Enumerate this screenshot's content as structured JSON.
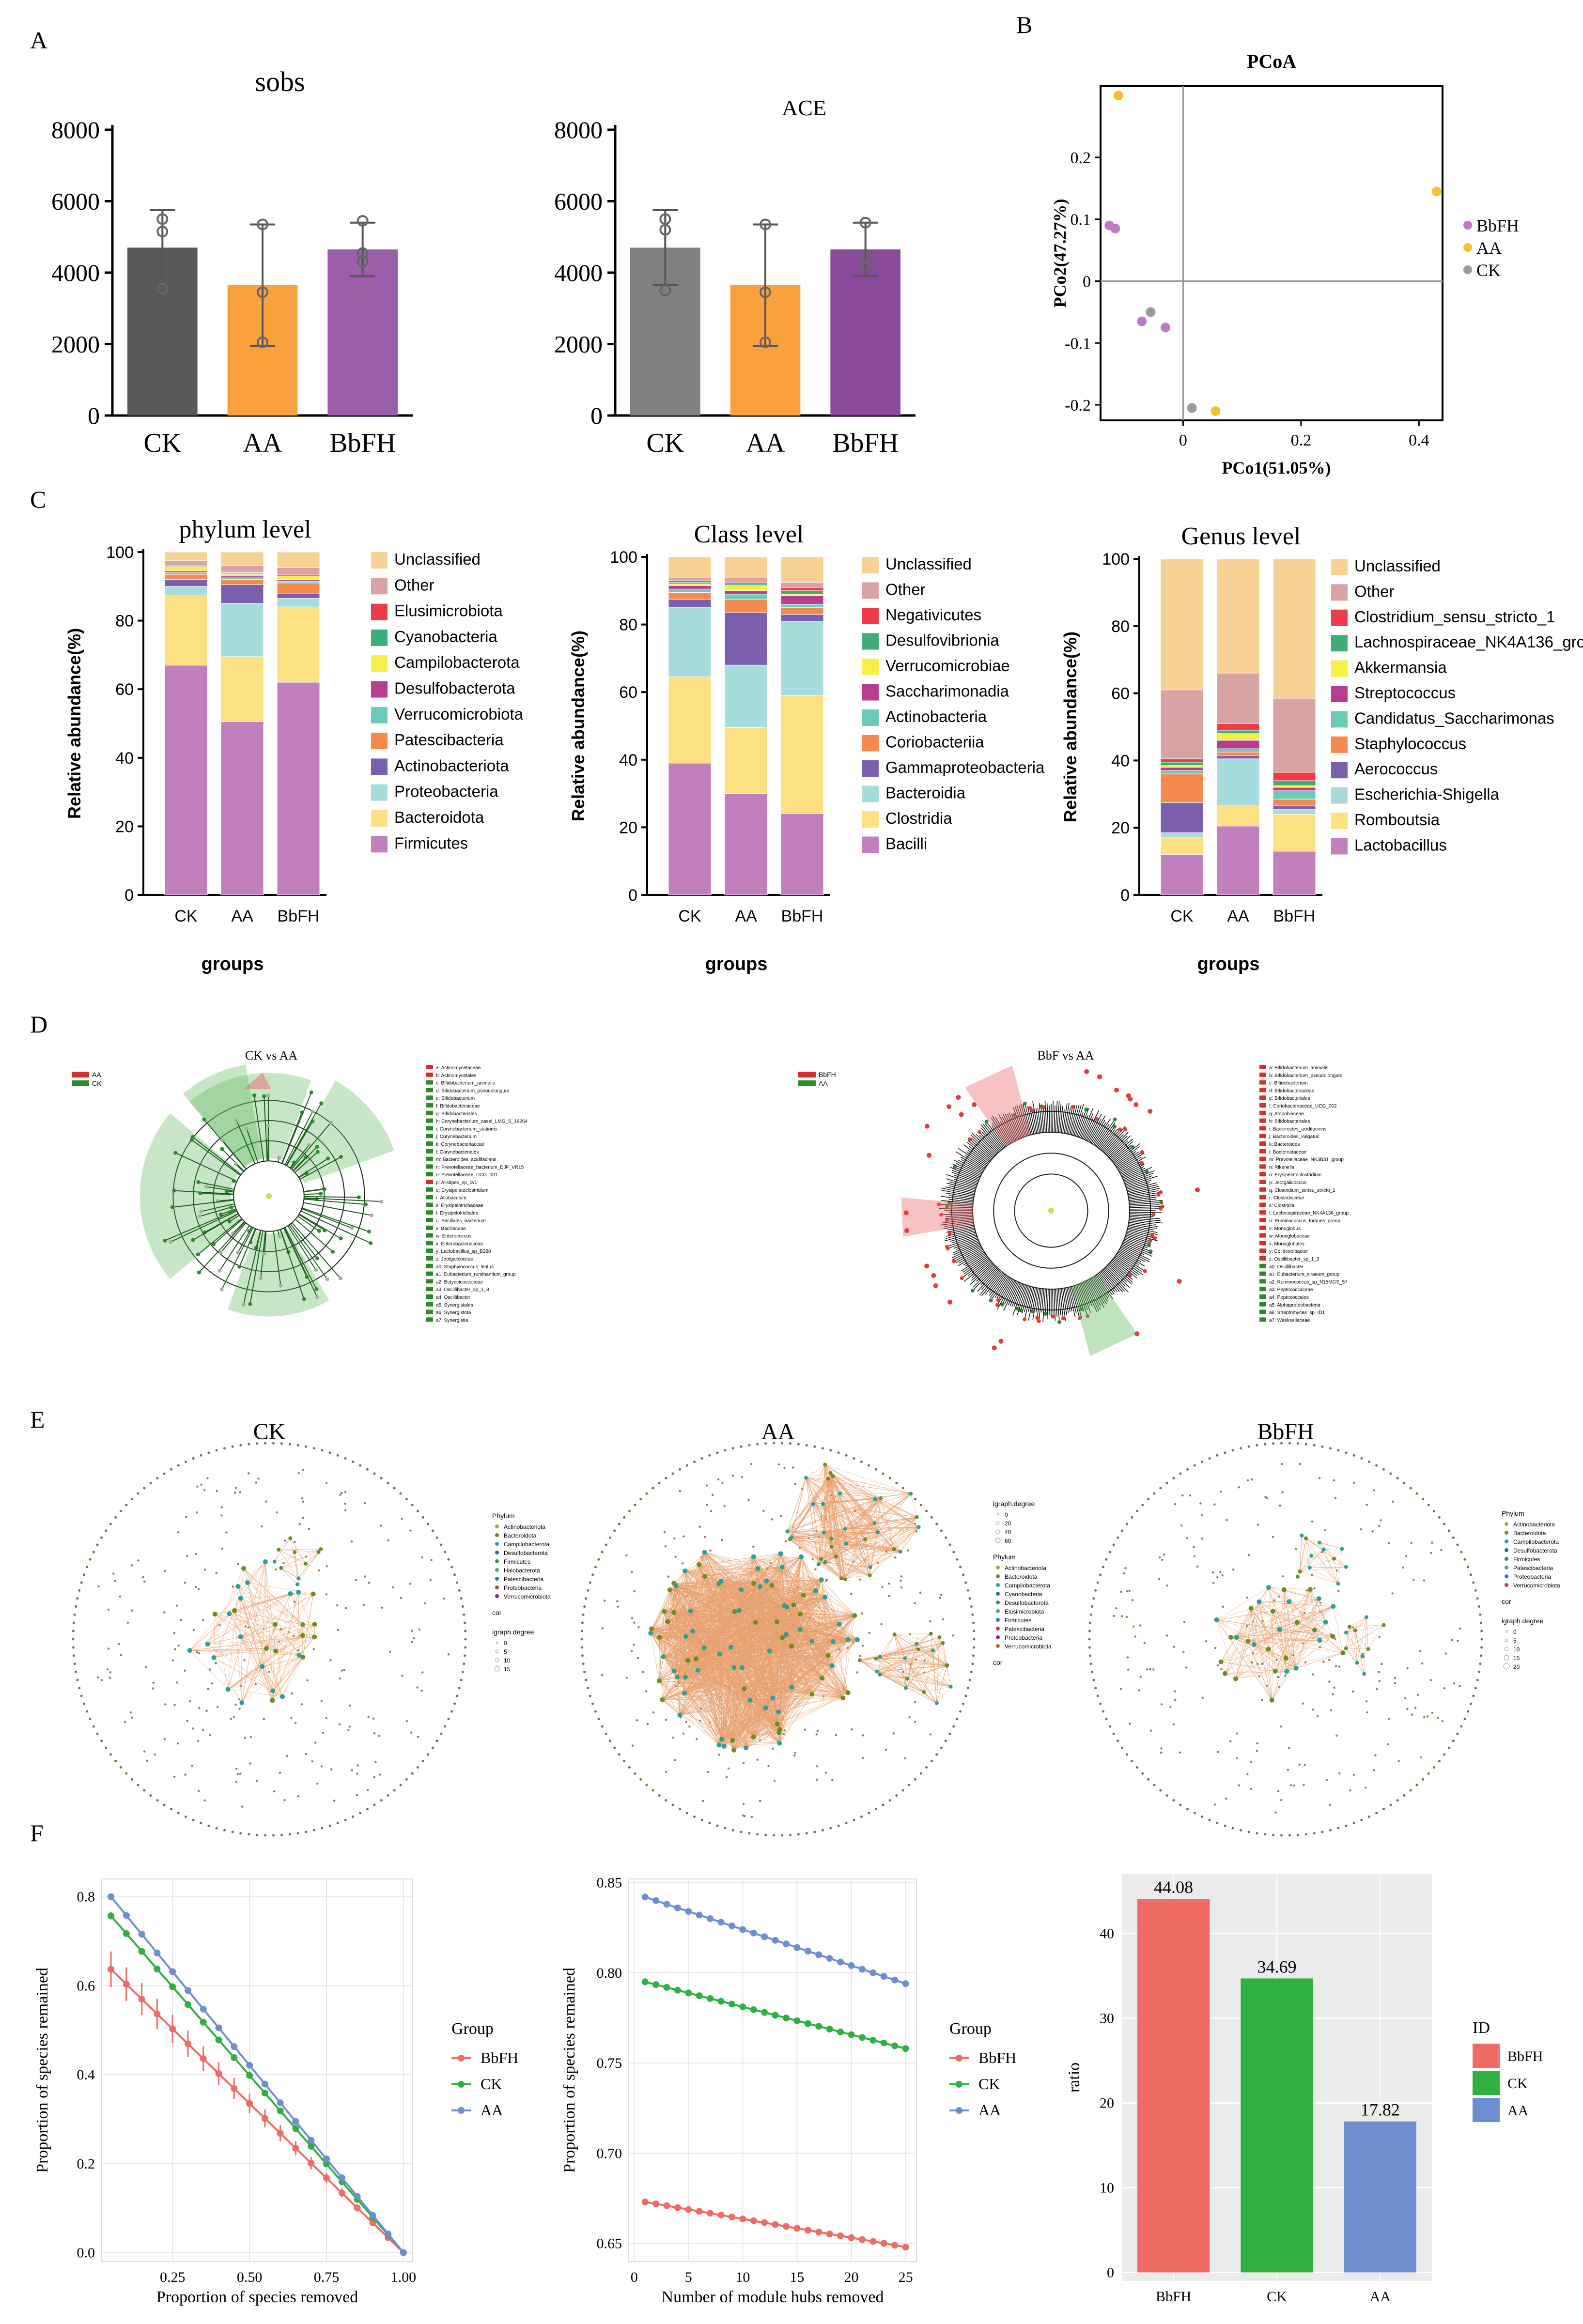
{
  "panel_labels": {
    "a": "A",
    "b": "B",
    "c": "C",
    "d": "D",
    "e": "E",
    "f": "F"
  },
  "colors": {
    "ck_gray": "#595959",
    "ck_gray2": "#808080",
    "aa_orange": "#f9a13c",
    "bbfh_purple": "#9b5ea8",
    "bbfh_purple2": "#8a4a9c",
    "pcoa_bbfh": "#c278c2",
    "pcoa_aa": "#f5c12b",
    "pcoa_ck": "#9a9a9a",
    "f_red": "#ef6b66",
    "f_green": "#2fb040",
    "f_blue": "#6d8fd0"
  },
  "panel_d": {
    "left_title": "CK vs AA",
    "left_legend": [
      "AA",
      "CK"
    ],
    "left_items": [
      "a: Actinomycetaceae",
      "b: Actinomycetales",
      "c: Bifidobacterium_animalis",
      "d: Bifidobacterium_pseudolongum",
      "e: Bifidobacterium",
      "f: Bifidobacteriaceae",
      "g: Bifidobacteriales",
      "h: Corynebacterium_casei_LMG_S_19264",
      "i: Corynebacterium_stationis",
      "j: Corynebacterium",
      "k: Corynebacteriaceae",
      "l: Corynebacteriales",
      "m: Bacteroides_acidifaciens",
      "n: Prevotellaceae_bacterium_DJF_VR15",
      "o: Prevotellaceae_UCG_001",
      "p: Alistipes_sp_cv1",
      "q: Erysipelatoclostridium",
      "r: Allobaculum",
      "s: Erysipelotrichaceae",
      "t: Erysipelotrichales",
      "u: Bacillales_bacterium",
      "v: Bacillaceae",
      "w: Enterococcus",
      "x: Enterobacteriaceae",
      "y: Lactobacillus_sp_B228",
      "z: Jeotgalicoccus",
      "a0: Staphylococcus_lentus",
      "a1: Eubacterium_ruminantium_group",
      "a2: Butyricicoccaceae",
      "a3: Oscillibacter_sp_1_3",
      "a4: Oscillibacter",
      "a5: Synergistales",
      "a6: Synergistota",
      "a7: Synergistia"
    ],
    "right_title": "BbF vs AA",
    "right_legend": [
      "BbFH",
      "AA"
    ],
    "right_items": [
      "a: Bifidobacterium_animalis",
      "b: Bifidobacterium_pseudolongum",
      "c: Bifidobacterium",
      "d: Bifidobacteriaceae",
      "e: Bifidobacteriales",
      "f: Coriobacteriaceae_UCG_002",
      "g: Atopobiaceae",
      "h: Bifidobacteriales",
      "i: Bacteroides_acidifaciens",
      "j: Bacteroides_vulgatus",
      "k: Bacteroides",
      "l: Bacteroidaceae",
      "m: Prevotellaceae_NK3B31_group",
      "n: Rikenella",
      "o: Erysipelatoclostridium",
      "p: Jeotgalicoccus",
      "q: Clostridium_sensu_stricto_1",
      "r: Clostridiaceae",
      "s: Clostridia",
      "t: Lachnospiraceae_NK4A136_group",
      "u: Ruminococcus_torques_group",
      "v: Monoglobus",
      "w: Monoglobaceae",
      "x: Monoglobales",
      "y: Colidextribacter",
      "z: Oscillibacter_sp_1_3",
      "a0: Oscillibacter",
      "a1: Eubacterium_siraeum_group",
      "a2: Ruminococcus_sp_N15MGS_57",
      "a3: Peptococcaceae",
      "a4: Peptococcales",
      "a5: Alphaproteobacteria",
      "a6: Streptomyces_sp_ID1",
      "a7: Weeksellaceae"
    ]
  },
  "panel_e": {
    "titles": [
      "CK",
      "AA",
      "BbFH"
    ],
    "ck_legend": {
      "phylum_title": "Phylum",
      "phyla": [
        "Actinobacteriota",
        "Bacteroidota",
        "Campilobacterota",
        "Desulfobacterota",
        "Firmicutes",
        "Halobacterota",
        "Patescibacteria",
        "Proteobacteria",
        "Verrucomicrobiota"
      ],
      "cor_title": "cor",
      "degree_title": "igraph.degree",
      "degrees": [
        "0",
        "5",
        "10",
        "15"
      ]
    },
    "aa_legend": {
      "degree_title": "igraph.degree",
      "degrees": [
        "0",
        "20",
        "40",
        "60"
      ],
      "phylum_title": "Phylum",
      "phyla": [
        "Actinobacteriota",
        "Bacteroidota",
        "Campilobacterota",
        "Cyanobacteria",
        "Desulfobacterota",
        "Elusimicrobiota",
        "Firmicutes",
        "Patescibacteria",
        "Proteobacteria",
        "Verrucomicrobiota"
      ],
      "cor_title": "cor"
    },
    "bbfh_legend": {
      "phylum_title": "Phylum",
      "phyla": [
        "Actinobacteriota",
        "Bacteroidota",
        "Campilobacterota",
        "Desulfobacterota",
        "Firmicutes",
        "Patescibacteria",
        "Proteobacteria",
        "Verrucomicrobiota"
      ],
      "cor_title": "cor",
      "degree_title": "igraph.degree",
      "degrees": [
        "0",
        "5",
        "10",
        "15",
        "20"
      ]
    }
  },
  "chart_data": [
    {
      "id": "a_sobs",
      "type": "bar",
      "title": "sobs",
      "categories": [
        "CK",
        "AA",
        "BbFH"
      ],
      "values": [
        4700,
        3650,
        4650
      ],
      "errors": [
        1050,
        1700,
        750
      ],
      "ylim": [
        0,
        8000
      ],
      "yticks": [
        0,
        2000,
        4000,
        6000,
        8000
      ],
      "points": [
        [
          5150,
          5500,
          3550
        ],
        [
          5350,
          3450,
          2050
        ],
        [
          5450,
          4550,
          4300
        ]
      ]
    },
    {
      "id": "a_ace",
      "type": "bar",
      "title": "ACE",
      "categories": [
        "CK",
        "AA",
        "BbFH"
      ],
      "values": [
        4700,
        3650,
        4650
      ],
      "errors": [
        1050,
        1700,
        750
      ],
      "ylim": [
        0,
        8000
      ],
      "yticks": [
        0,
        2000,
        4000,
        6000,
        8000
      ],
      "points": [
        [
          5200,
          5500,
          3500
        ],
        [
          5350,
          3450,
          2050
        ],
        [
          5400,
          4400,
          4200
        ]
      ]
    },
    {
      "id": "b_pcoa",
      "type": "scatter",
      "title": "PCoA",
      "xlabel": "PCo1(51.05%)",
      "ylabel": "PCo2(47.27%)",
      "xlim": [
        -0.14,
        0.44
      ],
      "ylim": [
        -0.225,
        0.315
      ],
      "xticks": [
        0,
        0.2,
        0.4
      ],
      "yticks": [
        -0.2,
        -0.1,
        0,
        0.1,
        0.2
      ],
      "series": [
        {
          "name": "BbFH",
          "points": [
            [
              -0.125,
              0.09
            ],
            [
              -0.115,
              0.085
            ],
            [
              -0.07,
              -0.065
            ],
            [
              -0.03,
              -0.075
            ]
          ]
        },
        {
          "name": "AA",
          "points": [
            [
              -0.11,
              0.3
            ],
            [
              0.055,
              -0.21
            ],
            [
              0.43,
              0.145
            ]
          ]
        },
        {
          "name": "CK",
          "points": [
            [
              -0.055,
              -0.05
            ],
            [
              0.015,
              -0.205
            ]
          ]
        }
      ]
    },
    {
      "id": "c_phylum",
      "type": "stacked_bar",
      "title": "phylum level",
      "xlabel": "groups",
      "ylabel": "Relative abundance(%)",
      "categories": [
        "CK",
        "AA",
        "BbFH"
      ],
      "series": [
        {
          "name": "Firmicutes",
          "values": [
            67,
            50.5,
            62
          ]
        },
        {
          "name": "Bacteroidota",
          "values": [
            20.5,
            19,
            22
          ]
        },
        {
          "name": "Proteobacteria",
          "values": [
            2.5,
            15.5,
            2.5
          ]
        },
        {
          "name": "Actinobacteriota",
          "values": [
            2,
            5.5,
            1.5
          ]
        },
        {
          "name": "Patescibacteria",
          "values": [
            1.5,
            1.5,
            3
          ]
        },
        {
          "name": "Verrucomicrobiota",
          "values": [
            0.5,
            0.5,
            0.5
          ]
        },
        {
          "name": "Desulfobacterota",
          "values": [
            0.5,
            0.5,
            0.5
          ]
        },
        {
          "name": "Campilobacterota",
          "values": [
            1,
            0.5,
            1
          ]
        },
        {
          "name": "Cyanobacteria",
          "values": [
            0.3,
            0.3,
            0.3
          ]
        },
        {
          "name": "Elusimicrobiota",
          "values": [
            0.2,
            0.2,
            0.2
          ]
        },
        {
          "name": "Other",
          "values": [
            1.5,
            2,
            2
          ]
        },
        {
          "name": "Unclassified",
          "values": [
            2.5,
            4,
            4.5
          ]
        }
      ]
    },
    {
      "id": "c_class",
      "type": "stacked_bar",
      "title": "Class level",
      "xlabel": "groups",
      "ylabel": "Relative abundance(%)",
      "categories": [
        "CK",
        "AA",
        "BbFH"
      ],
      "series": [
        {
          "name": "Bacilli",
          "values": [
            39,
            30,
            24
          ]
        },
        {
          "name": "Clostridia",
          "values": [
            25.5,
            19.5,
            35
          ]
        },
        {
          "name": "Bacteroidia",
          "values": [
            20.5,
            18.5,
            22
          ]
        },
        {
          "name": "Gammaproteobacteria",
          "values": [
            2.5,
            15.5,
            2
          ]
        },
        {
          "name": "Coriobacteriia",
          "values": [
            2,
            4,
            2
          ]
        },
        {
          "name": "Actinobacteria",
          "values": [
            1,
            1.5,
            1
          ]
        },
        {
          "name": "Saccharimonadia",
          "values": [
            1,
            1,
            2.5
          ]
        },
        {
          "name": "Verrucomicrobiae",
          "values": [
            0.5,
            1.5,
            0.5
          ]
        },
        {
          "name": "Desulfovibrionia",
          "values": [
            0.5,
            0.5,
            1
          ]
        },
        {
          "name": "Negativicutes",
          "values": [
            0.5,
            0.5,
            1
          ]
        },
        {
          "name": "Other",
          "values": [
            1,
            1.5,
            1.5
          ]
        },
        {
          "name": "Unclassified",
          "values": [
            6,
            6,
            7.5
          ]
        }
      ]
    },
    {
      "id": "c_genus",
      "type": "stacked_bar",
      "title": "Genus level",
      "xlabel": "groups",
      "ylabel": "Relative abundance(%)",
      "categories": [
        "CK",
        "AA",
        "BbFH"
      ],
      "series": [
        {
          "name": "Lactobacillus",
          "values": [
            12,
            20.5,
            13
          ]
        },
        {
          "name": "Romboutsia",
          "values": [
            5,
            6,
            11
          ]
        },
        {
          "name": "Escherichia-Shigella",
          "values": [
            1.5,
            14,
            1.5
          ]
        },
        {
          "name": "Aerococcus",
          "values": [
            9,
            1,
            1
          ]
        },
        {
          "name": "Staphylococcus",
          "values": [
            8.5,
            1,
            2
          ]
        },
        {
          "name": "Candidatus_Saccharimonas",
          "values": [
            1,
            1,
            2.5
          ]
        },
        {
          "name": "Streptococcus",
          "values": [
            1,
            2.5,
            1
          ]
        },
        {
          "name": "Akkermansia",
          "values": [
            0.5,
            2,
            0.5
          ]
        },
        {
          "name": "Lachnospiraceae_NK4A136_group",
          "values": [
            1,
            1,
            1.5
          ]
        },
        {
          "name": "Clostridium_sensu_stricto_1",
          "values": [
            1,
            2,
            2.5
          ]
        },
        {
          "name": "Other",
          "values": [
            20.5,
            15,
            22
          ]
        },
        {
          "name": "Unclassified",
          "values": [
            39,
            34,
            41.5
          ]
        }
      ]
    },
    {
      "id": "f_species",
      "type": "line",
      "xlabel": "Proportion of species removed",
      "ylabel": "Proportion of species remained",
      "legend_title": "Group",
      "xlim": [
        0.02,
        1.03
      ],
      "ylim": [
        -0.02,
        0.84
      ],
      "xticks": [
        0.25,
        0.5,
        0.75,
        1.0
      ],
      "xtick_labels": [
        "0.25",
        "0.50",
        "0.75",
        "1.00"
      ],
      "yticks": [
        0,
        0.2,
        0.4,
        0.6,
        0.8
      ],
      "ytick_labels": [
        "0.0",
        "0.2",
        "0.4",
        "0.6",
        "0.8"
      ],
      "series": [
        {
          "name": "BbFH",
          "start": 0.637,
          "error": 0.04
        },
        {
          "name": "CK",
          "start": 0.757,
          "error": 0.008
        },
        {
          "name": "AA",
          "start": 0.8,
          "error": 0.006
        }
      ]
    },
    {
      "id": "f_hubs",
      "type": "line",
      "xlabel": "Number of module hubs removed",
      "ylabel": "Proportion of species remained",
      "legend_title": "Group",
      "xlim": [
        -0.5,
        26
      ],
      "ylim": [
        0.64,
        0.852
      ],
      "xticks": [
        0,
        5,
        10,
        15,
        20,
        25
      ],
      "yticks": [
        0.65,
        0.7,
        0.75,
        0.8,
        0.85
      ],
      "ytick_labels": [
        "0.65",
        "0.70",
        "0.75",
        "0.80",
        "0.85"
      ],
      "series": [
        {
          "name": "BbFH",
          "start": 0.673,
          "end": 0.648
        },
        {
          "name": "CK",
          "start": 0.795,
          "end": 0.758
        },
        {
          "name": "AA",
          "start": 0.842,
          "end": 0.794
        }
      ]
    },
    {
      "id": "f_ratio",
      "type": "bar",
      "ylabel": "ratio",
      "legend_title": "ID",
      "categories": [
        "BbFH",
        "CK",
        "AA"
      ],
      "values": [
        44.08,
        34.69,
        17.82
      ],
      "labels": [
        "44.08",
        "34.69",
        "17.82"
      ],
      "ylim": [
        -1,
        47
      ],
      "yticks": [
        0,
        10,
        20,
        30,
        40
      ]
    }
  ]
}
